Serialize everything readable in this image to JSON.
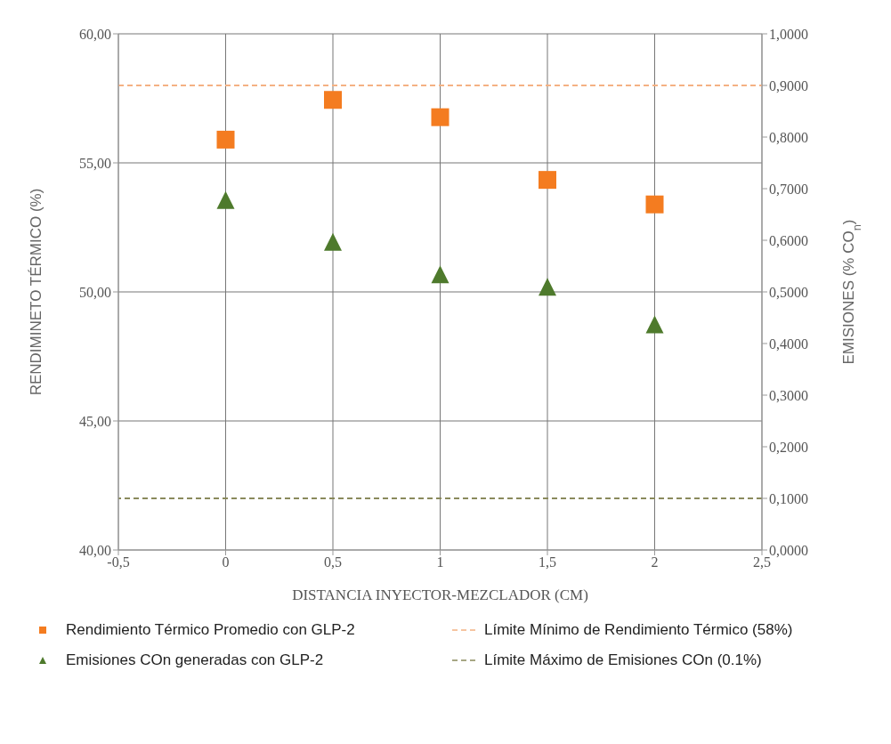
{
  "chart_data": {
    "type": "scatter",
    "xlabel": "DISTANCIA INYECTOR-MEZCLADOR (CM)",
    "ylabel": "RENDIMINETO TÉRMICO (%)",
    "y2label": "EMISIONES (% CO$_{n}$)",
    "x": [
      0,
      0.5,
      1,
      1.5,
      2
    ],
    "series": [
      {
        "name": "Rendimiento Térmico Promedio con GLP-2",
        "color": "#f47c20",
        "marker": "square",
        "values": [
          55.9,
          57.44,
          56.77,
          54.34,
          53.39
        ]
      },
      {
        "name": "Emisiones COn generadas con GLP-2",
        "color": "#4e7a2c",
        "marker": "triangle",
        "axis": "y2",
        "values": [
          0.678,
          0.597,
          0.534,
          0.51,
          0.437
        ]
      }
    ],
    "xlim": [
      -0.5,
      2.5
    ],
    "xticks": [
      {
        "value": -0.5,
        "label": "-0,5"
      },
      {
        "value": 0,
        "label": "0"
      },
      {
        "value": 0.5,
        "label": "0,5"
      },
      {
        "value": 1,
        "label": "1"
      },
      {
        "value": 1.5,
        "label": "1,5"
      },
      {
        "value": 2,
        "label": "2"
      },
      {
        "value": 2.5,
        "label": "2,5"
      }
    ],
    "ylim": [
      40,
      60
    ],
    "yticks": [
      {
        "value": 40,
        "label": "40,00"
      },
      {
        "value": 45,
        "label": "45,00"
      },
      {
        "value": 50,
        "label": "50,00"
      },
      {
        "value": 55,
        "label": "55,00"
      },
      {
        "value": 60,
        "label": "60,00"
      }
    ],
    "y2lim": [
      0,
      1
    ],
    "y2ticks": [
      {
        "value": 0,
        "label": "0,0000"
      },
      {
        "value": 0.1,
        "label": "0,1000"
      },
      {
        "value": 0.2,
        "label": "0,2000"
      },
      {
        "value": 0.3,
        "label": "0,3000"
      },
      {
        "value": 0.4,
        "label": "0,4000"
      },
      {
        "value": 0.5,
        "label": "0,5000"
      },
      {
        "value": 0.6,
        "label": "0,6000"
      },
      {
        "value": 0.7,
        "label": "0,7000"
      },
      {
        "value": 0.8,
        "label": "0,8000"
      },
      {
        "value": 0.9,
        "label": "0,9000"
      },
      {
        "value": 1,
        "label": "1,0000"
      }
    ],
    "ref_lines": [
      {
        "axis": "y",
        "value": 58,
        "label": "Límite Mínimo de Rendimiento Térmico (58%)",
        "color": "#f4b183",
        "line_style": "dashed"
      },
      {
        "axis": "y2",
        "value": 0.1,
        "label": "Límite Máximo de Emisiones COn (0.1%)",
        "color": "#8a8a5c",
        "line_style": "dashed"
      }
    ],
    "grid": true,
    "legend": "bottom"
  }
}
